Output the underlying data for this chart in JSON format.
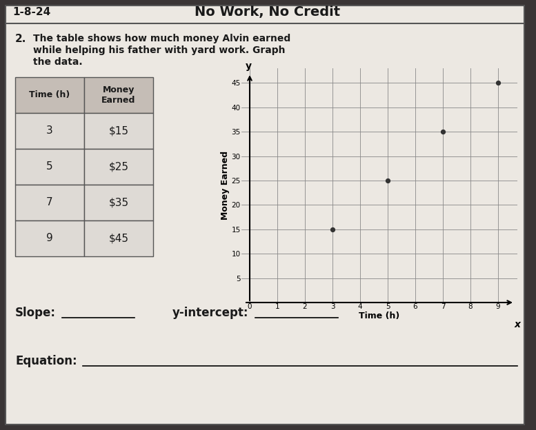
{
  "title": "No Work, No Credit",
  "date": "1-8-24",
  "problem_number": "2.",
  "problem_text_line1": "The table shows how much money Alvin earned",
  "problem_text_line2": "while helping his father with yard work. Graph",
  "problem_text_line3": "the data.",
  "table_headers": [
    "Time (h)",
    "Money\nEarned"
  ],
  "table_data": [
    [
      3,
      "$15"
    ],
    [
      5,
      "$25"
    ],
    [
      7,
      "$35"
    ],
    [
      9,
      "$45"
    ]
  ],
  "graph_xlabel": "Time (h)",
  "graph_ylabel": "Money Earned",
  "x_ticks": [
    0,
    1,
    2,
    3,
    4,
    5,
    6,
    7,
    8,
    9
  ],
  "y_ticks": [
    5,
    10,
    15,
    20,
    25,
    30,
    35,
    40,
    45
  ],
  "x_data": [
    3,
    5,
    7,
    9
  ],
  "y_data": [
    15,
    25,
    35,
    45
  ],
  "slope_label": "Slope:",
  "y_intercept_label": "y-intercept:",
  "equation_label": "Equation:",
  "bg_color": "#3a3535",
  "paper_color": "#ece8e2",
  "table_header_color": "#c5bdb6",
  "table_cell_color": "#dedad5",
  "grid_color": "#888888",
  "point_color": "#333333",
  "border_color": "#555555",
  "text_color": "#1a1a1a"
}
